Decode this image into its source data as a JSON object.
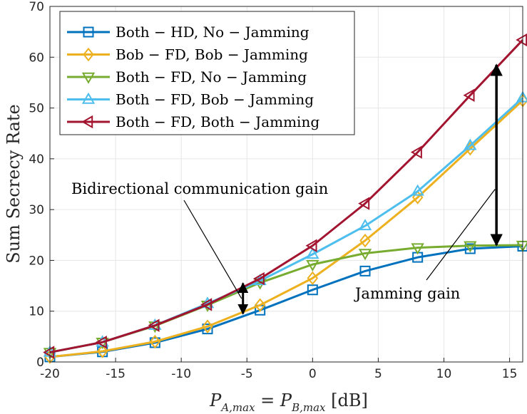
{
  "chart_data": {
    "type": "line",
    "title": "",
    "xlabel": "P_{A,max} = P_{B,max} [dB]",
    "ylabel": "Sum Secrecy Rate",
    "xlim": [
      -20,
      16
    ],
    "ylim": [
      0,
      70
    ],
    "xticks": [
      -20,
      -15,
      -10,
      -5,
      0,
      5,
      10,
      15
    ],
    "yticks": [
      0,
      10,
      20,
      30,
      40,
      50,
      60,
      70
    ],
    "grid": true,
    "legend_position": "top-left",
    "x": [
      -20,
      -16,
      -12,
      -8,
      -4,
      0,
      4,
      8,
      12,
      16
    ],
    "series": [
      {
        "name": "Both − HD, No − Jamming",
        "color": "#0072BD",
        "marker": "square",
        "values": [
          1.0,
          2.0,
          3.8,
          6.5,
          10.2,
          14.2,
          17.9,
          20.6,
          22.3,
          22.8
        ]
      },
      {
        "name": "Bob − FD, Bob − Jamming",
        "color": "#EDB120",
        "marker": "diamond",
        "values": [
          1.0,
          2.1,
          4.0,
          7.0,
          11.2,
          16.5,
          23.9,
          32.4,
          42.0,
          51.5
        ]
      },
      {
        "name": "Both − FD, No − Jamming",
        "color": "#77AC30",
        "marker": "triangle-down",
        "values": [
          1.9,
          3.9,
          7.1,
          11.2,
          15.6,
          19.2,
          21.4,
          22.5,
          22.9,
          23.0
        ]
      },
      {
        "name": "Both − FD, Bob − Jamming",
        "color": "#4DBEEE",
        "marker": "triangle-up",
        "values": [
          1.9,
          3.9,
          7.2,
          11.5,
          16.0,
          21.2,
          26.8,
          33.6,
          42.6,
          52.0
        ]
      },
      {
        "name": "Both − FD, Both − Jamming",
        "color": "#A2142F",
        "marker": "triangle-left",
        "values": [
          1.9,
          3.9,
          7.2,
          11.3,
          16.4,
          22.9,
          31.2,
          41.3,
          52.5,
          63.4
        ]
      }
    ],
    "annotations": [
      {
        "text": "Bidirectional communication gain",
        "arrow_x": -5.3,
        "arrow_from": 9.5,
        "arrow_to": 15.5
      },
      {
        "text": "Jamming gain",
        "arrow_x": 14.0,
        "arrow_from": 23.0,
        "arrow_to": 58.5
      }
    ]
  }
}
